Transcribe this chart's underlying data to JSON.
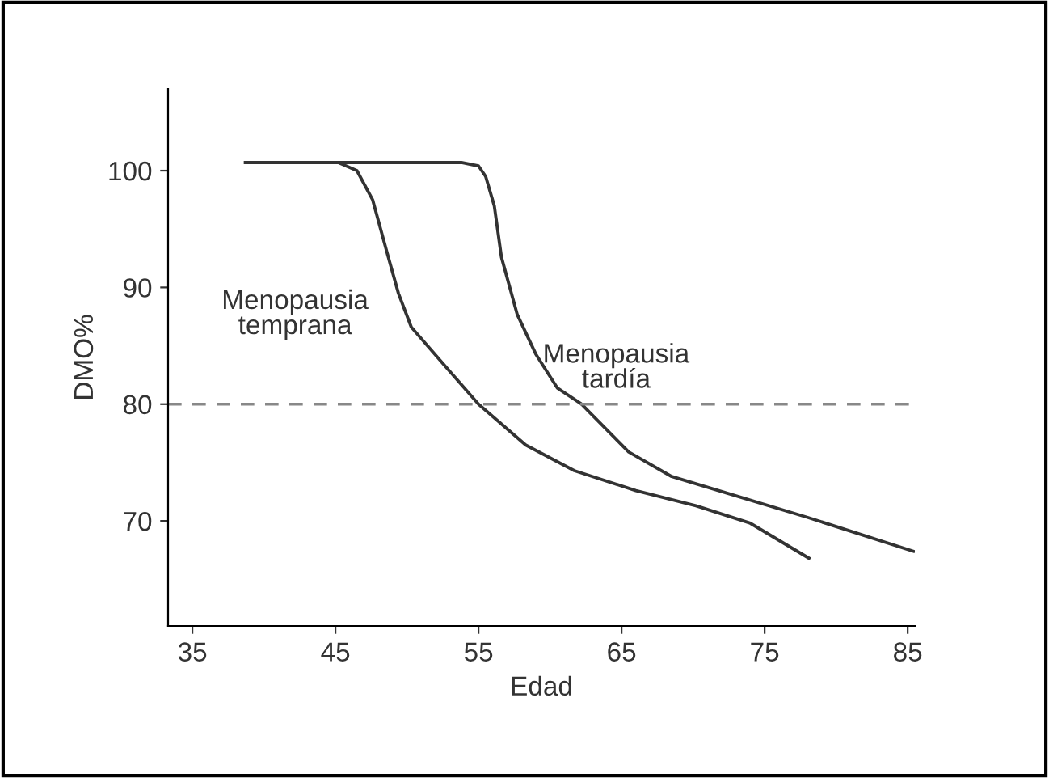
{
  "chart_data": {
    "type": "line",
    "xlabel": "Edad",
    "ylabel": "DMO%",
    "xlim": [
      33.3,
      85.5
    ],
    "ylim": [
      61,
      107
    ],
    "xticks": [
      35,
      45,
      55,
      65,
      75,
      85
    ],
    "yticks": [
      70,
      80,
      90,
      100
    ],
    "grid": false,
    "series": [
      {
        "name": "Menopausia\ntemprana",
        "color": "#333333",
        "x": [
          38.7,
          45.2,
          46.5,
          47.6,
          48.6,
          49.4,
          50.3,
          52.5,
          55,
          58.3,
          61.7,
          66,
          70.2,
          74,
          78.1
        ],
        "values": [
          100.7,
          100.7,
          100,
          97.5,
          93,
          89.5,
          86.6,
          83.5,
          80,
          76.5,
          74.3,
          72.6,
          71.3,
          69.8,
          66.8
        ]
      },
      {
        "name": "Menopausia\ntardía",
        "color": "#333333",
        "x": [
          45.2,
          53.8,
          55,
          55.5,
          56.1,
          56.6,
          57.7,
          59,
          60.5,
          62.2,
          65.5,
          68.5,
          72.3,
          78,
          85.4
        ],
        "values": [
          100.7,
          100.7,
          100.4,
          99.5,
          97,
          92.6,
          87.7,
          84.3,
          81.4,
          80,
          75.9,
          73.8,
          72.4,
          70.3,
          67.4
        ]
      }
    ],
    "ref_lines": [
      {
        "axis": "y",
        "value": 80,
        "color": "#888888",
        "line_style": "dashed"
      }
    ]
  }
}
